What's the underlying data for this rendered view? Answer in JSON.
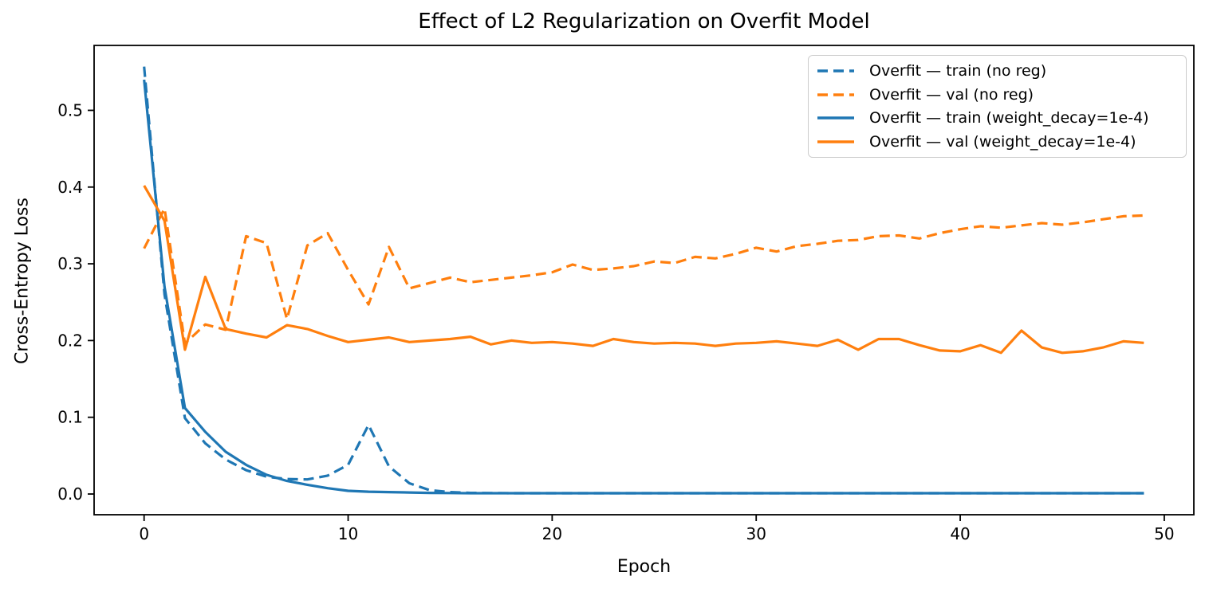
{
  "colors": {
    "blue": "#1f77b4",
    "orange": "#ff7f0e",
    "axis": "#000000",
    "tick_label": "#000000",
    "legend_border": "#cccccc",
    "background": "#ffffff"
  },
  "chart_data": {
    "type": "line",
    "title": "Effect of L2 Regularization on Overfit Model",
    "xlabel": "Epoch",
    "ylabel": "Cross-Entropy Loss",
    "grid": false,
    "legend_position": "upper right",
    "xlim": [
      -2.45,
      51.45
    ],
    "ylim": [
      -0.027,
      0.5846
    ],
    "x_ticks": {
      "values": [
        0,
        10,
        20,
        30,
        40,
        50
      ],
      "labels": [
        "0",
        "10",
        "20",
        "30",
        "40",
        "50"
      ]
    },
    "y_ticks": {
      "values": [
        0.0,
        0.1,
        0.2,
        0.3,
        0.4,
        0.5
      ],
      "labels": [
        "0.0",
        "0.1",
        "0.2",
        "0.3",
        "0.4",
        "0.5"
      ]
    },
    "x": [
      0,
      1,
      2,
      3,
      4,
      5,
      6,
      7,
      8,
      9,
      10,
      11,
      12,
      13,
      14,
      15,
      16,
      17,
      18,
      19,
      20,
      21,
      22,
      23,
      24,
      25,
      26,
      27,
      28,
      29,
      30,
      31,
      32,
      33,
      34,
      35,
      36,
      37,
      38,
      39,
      40,
      41,
      42,
      43,
      44,
      45,
      46,
      47,
      48,
      49
    ],
    "series": [
      {
        "name": "Overfit — train (no reg)",
        "color": "#1f77b4",
        "style": "dashed",
        "values": [
          0.557,
          0.26,
          0.099,
          0.066,
          0.045,
          0.031,
          0.0225,
          0.0195,
          0.019,
          0.024,
          0.038,
          0.09,
          0.036,
          0.014,
          0.005,
          0.0025,
          0.0015,
          0.0012,
          0.001,
          0.001,
          0.001,
          0.001,
          0.001,
          0.001,
          0.001,
          0.001,
          0.001,
          0.001,
          0.001,
          0.001,
          0.001,
          0.001,
          0.001,
          0.001,
          0.001,
          0.001,
          0.001,
          0.001,
          0.001,
          0.001,
          0.001,
          0.001,
          0.001,
          0.001,
          0.001,
          0.001,
          0.001,
          0.001,
          0.001,
          0.001
        ]
      },
      {
        "name": "Overfit — val (no reg)",
        "color": "#ff7f0e",
        "style": "dashed",
        "values": [
          0.32,
          0.372,
          0.196,
          0.221,
          0.214,
          0.336,
          0.327,
          0.228,
          0.324,
          0.34,
          0.292,
          0.247,
          0.322,
          0.268,
          0.275,
          0.282,
          0.276,
          0.279,
          0.282,
          0.285,
          0.289,
          0.299,
          0.292,
          0.294,
          0.297,
          0.303,
          0.301,
          0.309,
          0.307,
          0.313,
          0.321,
          0.316,
          0.323,
          0.326,
          0.33,
          0.331,
          0.336,
          0.337,
          0.333,
          0.34,
          0.345,
          0.349,
          0.347,
          0.35,
          0.353,
          0.351,
          0.354,
          0.358,
          0.362,
          0.363
        ]
      },
      {
        "name": "Overfit — train (weight_decay=1e-4)",
        "color": "#1f77b4",
        "style": "solid",
        "values": [
          0.54,
          0.27,
          0.112,
          0.081,
          0.055,
          0.038,
          0.025,
          0.017,
          0.012,
          0.0076,
          0.0042,
          0.003,
          0.0025,
          0.002,
          0.0015,
          0.0012,
          0.001,
          0.001,
          0.001,
          0.001,
          0.001,
          0.001,
          0.001,
          0.001,
          0.001,
          0.001,
          0.001,
          0.001,
          0.001,
          0.001,
          0.001,
          0.001,
          0.001,
          0.001,
          0.001,
          0.001,
          0.001,
          0.001,
          0.001,
          0.001,
          0.001,
          0.001,
          0.001,
          0.001,
          0.001,
          0.001,
          0.001,
          0.001,
          0.001,
          0.001
        ]
      },
      {
        "name": "Overfit — val (weight_decay=1e-4)",
        "color": "#ff7f0e",
        "style": "solid",
        "values": [
          0.402,
          0.356,
          0.188,
          0.283,
          0.215,
          0.209,
          0.204,
          0.22,
          0.215,
          0.206,
          0.198,
          0.201,
          0.204,
          0.198,
          0.2,
          0.202,
          0.205,
          0.195,
          0.2,
          0.197,
          0.198,
          0.196,
          0.193,
          0.202,
          0.198,
          0.196,
          0.197,
          0.196,
          0.193,
          0.196,
          0.197,
          0.199,
          0.196,
          0.193,
          0.201,
          0.188,
          0.202,
          0.202,
          0.194,
          0.187,
          0.186,
          0.194,
          0.184,
          0.213,
          0.191,
          0.184,
          0.186,
          0.191,
          0.199,
          0.197
        ]
      }
    ]
  }
}
